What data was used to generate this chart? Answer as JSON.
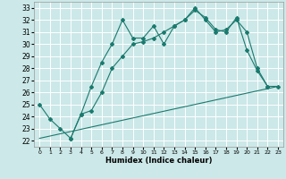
{
  "xlabel": "Humidex (Indice chaleur)",
  "bg_color": "#cce8e8",
  "grid_color": "#ffffff",
  "line_color": "#1a7a6e",
  "xlim": [
    -0.5,
    23.5
  ],
  "ylim": [
    21.5,
    33.5
  ],
  "xticks": [
    0,
    1,
    2,
    3,
    4,
    5,
    6,
    7,
    8,
    9,
    10,
    11,
    12,
    13,
    14,
    15,
    16,
    17,
    18,
    19,
    20,
    21,
    22,
    23
  ],
  "yticks": [
    22,
    23,
    24,
    25,
    26,
    27,
    28,
    29,
    30,
    31,
    32,
    33
  ],
  "line1_x": [
    0,
    1,
    2,
    3,
    4,
    5,
    6,
    7,
    8,
    9,
    10,
    11,
    12,
    13,
    14,
    15,
    16,
    17,
    18,
    19,
    20,
    21,
    22
  ],
  "line1_y": [
    25.0,
    23.8,
    23.0,
    22.2,
    24.2,
    26.5,
    28.5,
    30.0,
    32.0,
    30.5,
    30.5,
    31.5,
    30.0,
    31.5,
    32.0,
    32.8,
    32.2,
    31.2,
    31.0,
    32.2,
    29.5,
    27.8,
    26.5
  ],
  "line2_x": [
    3,
    4,
    5,
    6,
    7,
    8,
    9,
    10,
    11,
    12,
    13,
    14,
    15,
    16,
    17,
    18,
    19,
    20,
    21,
    22,
    23
  ],
  "line2_y": [
    22.2,
    24.2,
    24.5,
    26.0,
    28.0,
    29.0,
    30.0,
    30.2,
    30.5,
    31.0,
    31.5,
    32.0,
    33.0,
    32.0,
    31.0,
    31.2,
    32.0,
    31.0,
    28.0,
    26.5,
    26.5
  ],
  "line3_x": [
    0,
    23
  ],
  "line3_y": [
    22.2,
    26.5
  ]
}
